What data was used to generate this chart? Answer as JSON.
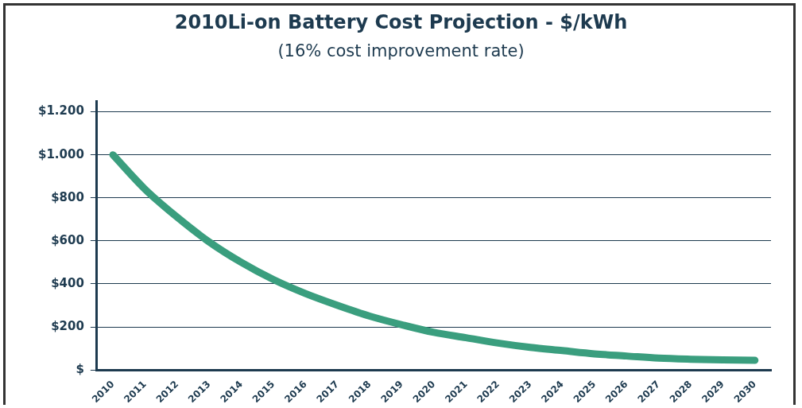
{
  "chart_data": {
    "type": "line",
    "title": "2010Li-on Battery Cost Projection - $/kWh",
    "subtitle": "(16% cost improvement rate)",
    "categories": [
      "2010",
      "2011",
      "2012",
      "2013",
      "2014",
      "2015",
      "2016",
      "2017",
      "2018",
      "2019",
      "2020",
      "2021",
      "2022",
      "2023",
      "2024",
      "2025",
      "2026",
      "2027",
      "2028",
      "2029",
      "2030"
    ],
    "series": [
      {
        "color": "#3a9e7e",
        "values": [
          1000,
          840,
          710,
          595,
          500,
          420,
          355,
          300,
          250,
          210,
          175,
          150,
          125,
          105,
          90,
          75,
          65,
          55,
          50,
          47,
          45
        ]
      }
    ],
    "ylim": [
      0,
      1250
    ],
    "yticks": [
      {
        "value": 0,
        "label": "$"
      },
      {
        "value": 200,
        "label": "$200"
      },
      {
        "value": 400,
        "label": "$400"
      },
      {
        "value": 600,
        "label": "$600"
      },
      {
        "value": 800,
        "label": "$800"
      },
      {
        "value": 1000,
        "label": "$1.000"
      },
      {
        "value": 1200,
        "label": "$1.200"
      }
    ],
    "grid": "y",
    "legend": false,
    "marker": "none",
    "line_style": "solid"
  }
}
